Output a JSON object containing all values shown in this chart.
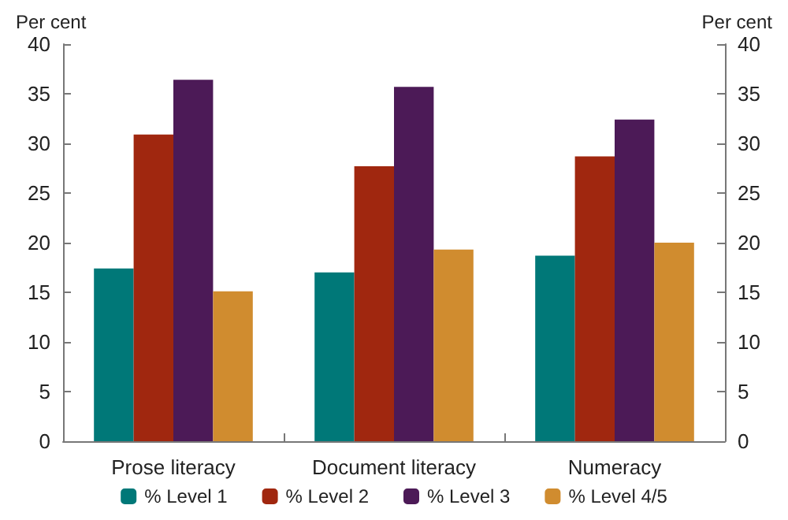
{
  "chart_data": {
    "type": "bar",
    "categories": [
      "Prose literacy",
      "Document literacy",
      "Numeracy"
    ],
    "series": [
      {
        "name": "% Level 1",
        "color": "#007878",
        "values": [
          17.4,
          17.0,
          18.7
        ]
      },
      {
        "name": "% Level 2",
        "color": "#a0270f",
        "values": [
          30.9,
          27.7,
          28.7
        ]
      },
      {
        "name": "% Level 3",
        "color": "#4c1a57",
        "values": [
          36.4,
          35.7,
          32.4
        ]
      },
      {
        "name": "% Level 4/5",
        "color": "#d08c2f",
        "values": [
          15.1,
          19.3,
          20.0
        ]
      }
    ],
    "ylabel": "Per cent",
    "y2label": "Per cent",
    "ylim": [
      0,
      40
    ],
    "yticks": [
      0,
      5,
      10,
      15,
      20,
      25,
      30,
      35,
      40
    ],
    "y2lim": [
      0,
      40
    ],
    "y2ticks": [
      0,
      5,
      10,
      15,
      20,
      25,
      30,
      35,
      40
    ],
    "grid": false,
    "legend": "bottom"
  }
}
